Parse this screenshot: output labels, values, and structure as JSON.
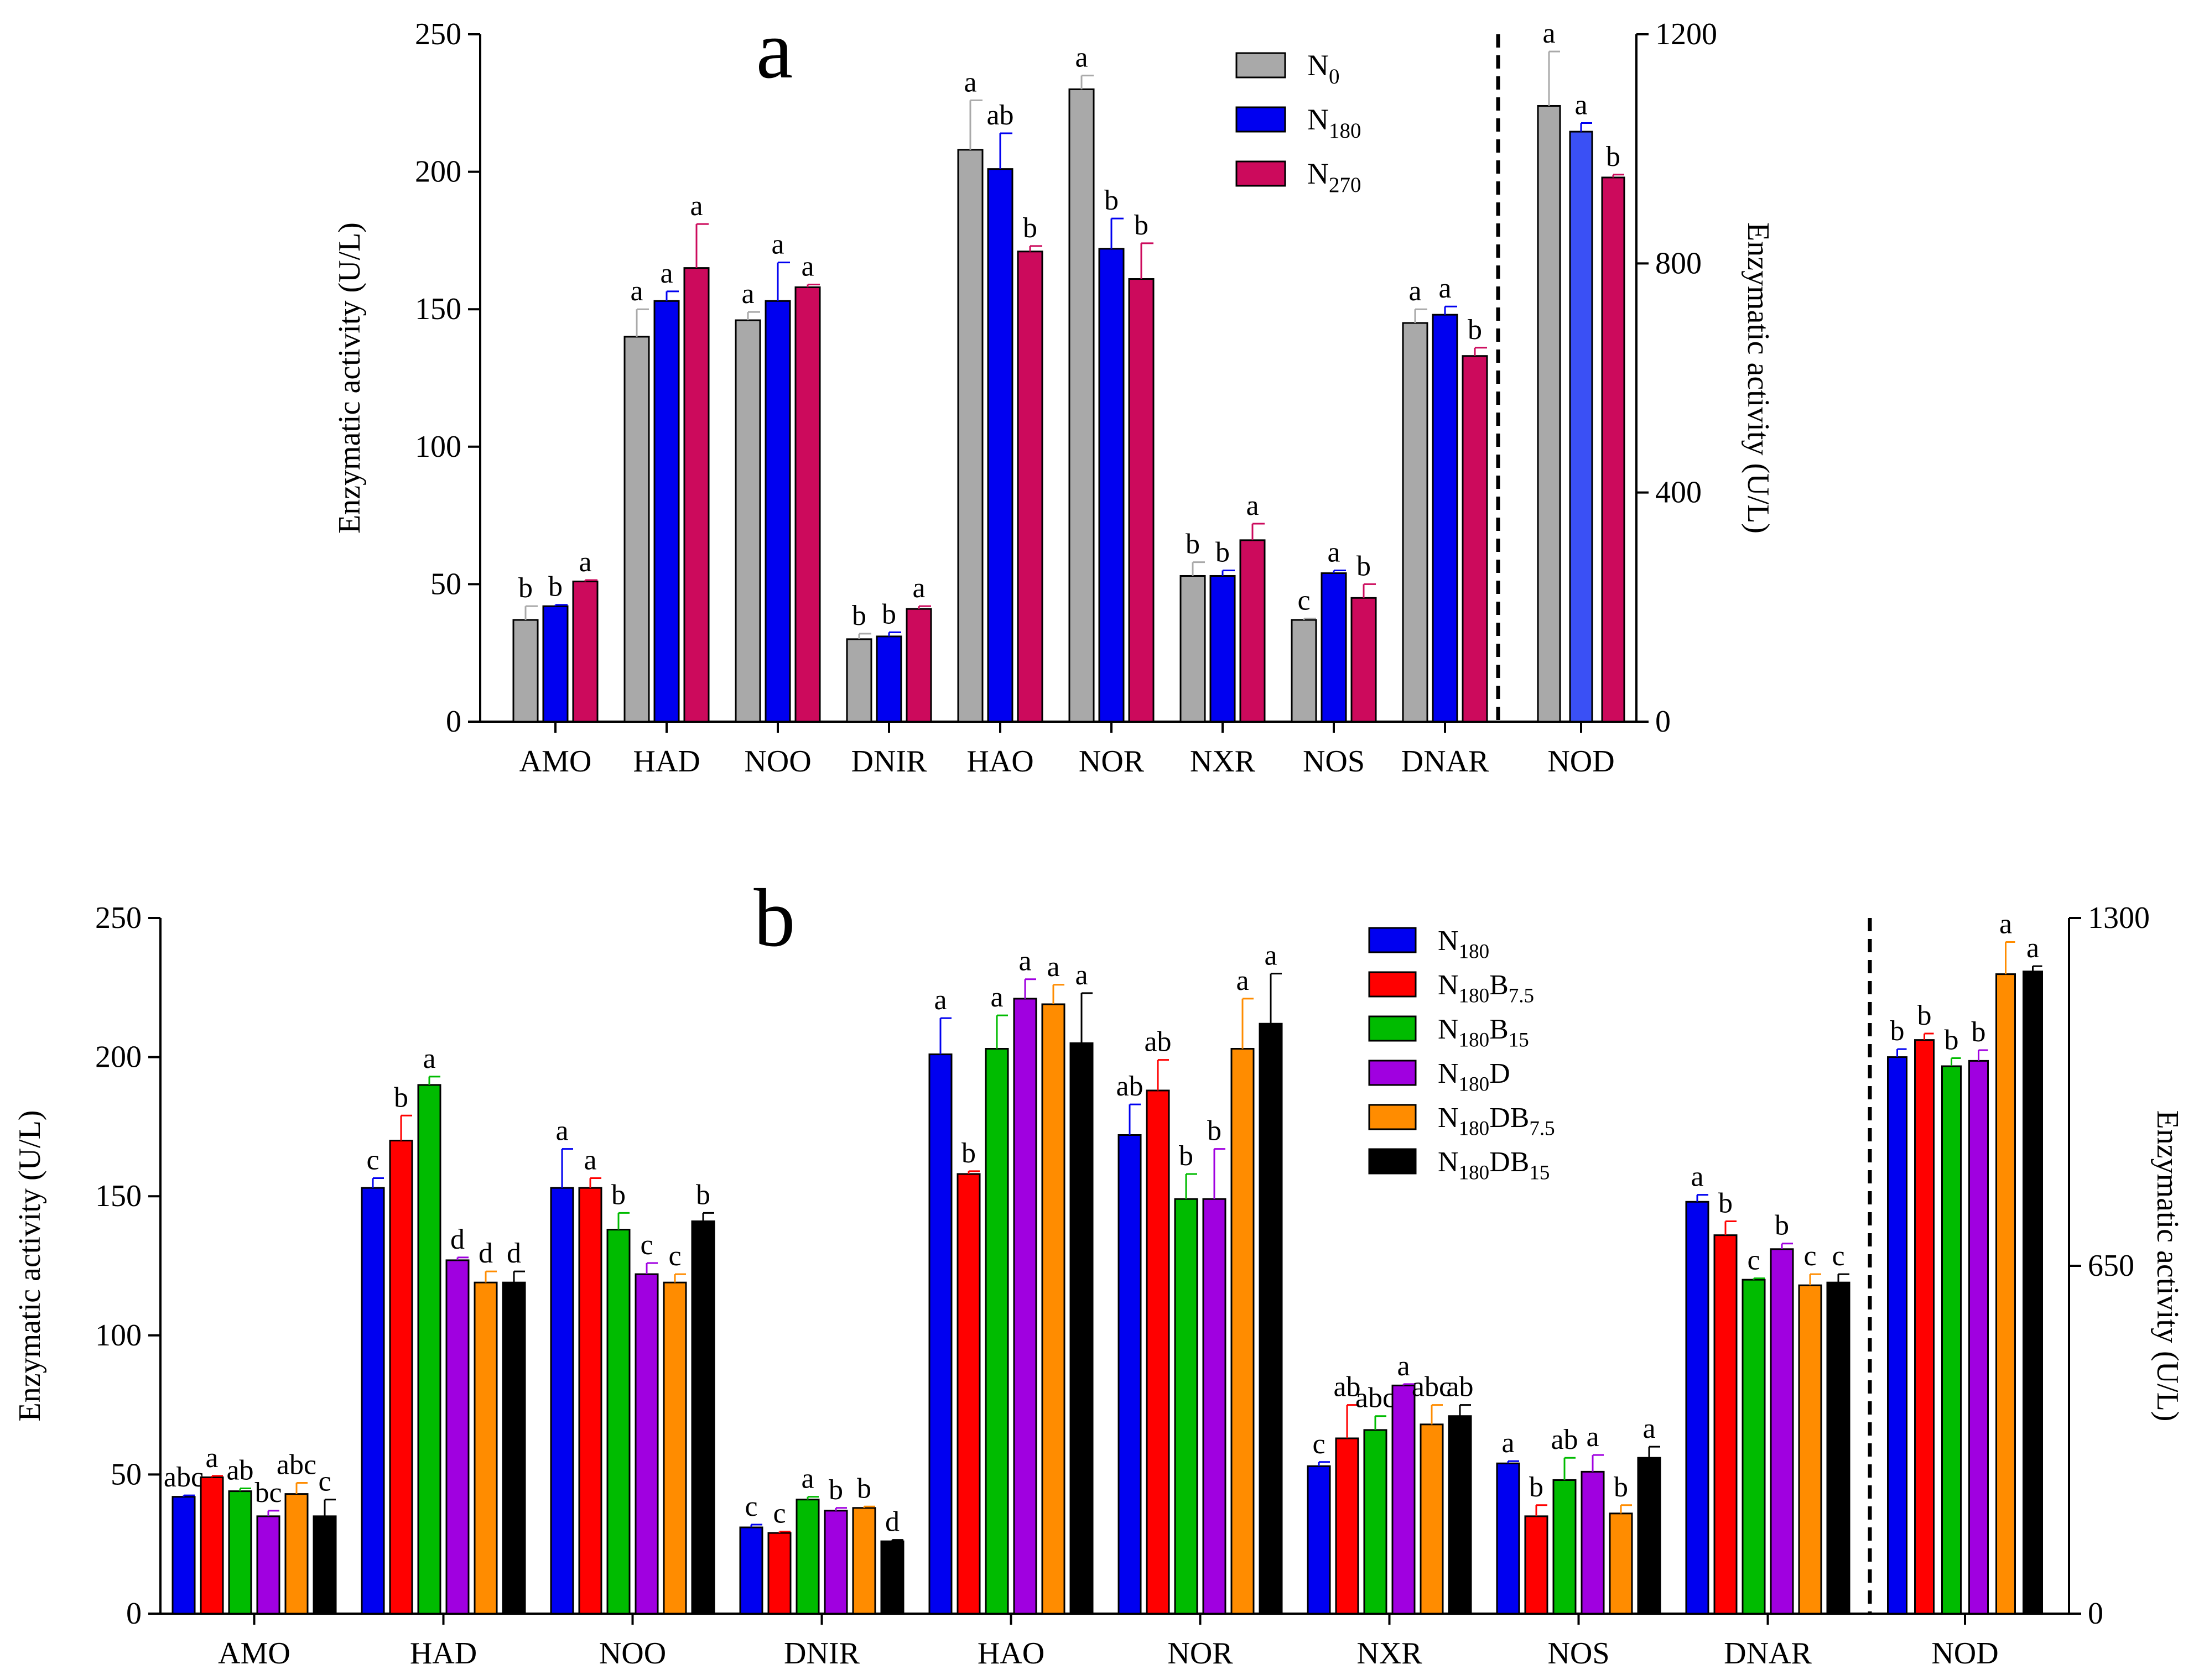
{
  "chart_data": [
    {
      "type": "bar",
      "panel_label": "a",
      "ylabel": "Enzymatic activity (U/L)",
      "ylabel_right": "Enzymatic activity (U/L)",
      "ylim": [
        0,
        250
      ],
      "yticks": [
        "0",
        "50",
        "100",
        "150",
        "200",
        "250"
      ],
      "ylim_right": [
        0,
        1200
      ],
      "yticks_right": [
        "0",
        "400",
        "800",
        "1200"
      ],
      "categories": [
        "AMO",
        "HAD",
        "NOO",
        "DNIR",
        "HAO",
        "NOR",
        "NXR",
        "NOS",
        "DNAR"
      ],
      "right_categories": [
        "NOD"
      ],
      "legend": {
        "position": "top-center",
        "entries": [
          {
            "base": "N",
            "sub": "0"
          },
          {
            "base": "N",
            "sub": "180"
          },
          {
            "base": "N",
            "sub": "270"
          }
        ]
      },
      "series": [
        {
          "base": "N",
          "sub": "0",
          "color": "#a9a9a9",
          "values": [
            37,
            140,
            146,
            30,
            208,
            230,
            53,
            37,
            145
          ],
          "errors": [
            5,
            10,
            3,
            2,
            18,
            5,
            5,
            0.5,
            5
          ],
          "letters": [
            "b",
            "a",
            "a",
            "b",
            "a",
            "a",
            "b",
            "c",
            "a"
          ],
          "right_values": [
            1075
          ],
          "right_errors": [
            95
          ],
          "right_letters": [
            "a"
          ]
        },
        {
          "base": "N",
          "sub": "180",
          "color": "#0000f0",
          "values": [
            42,
            153,
            153,
            31,
            201,
            172,
            53,
            54,
            148
          ],
          "errors": [
            0.5,
            3.5,
            14,
            1.5,
            13,
            11,
            2,
            1,
            3
          ],
          "letters": [
            "b",
            "a",
            "a",
            "b",
            "ab",
            "b",
            "b",
            "a",
            "a"
          ],
          "right_values": [
            1030
          ],
          "right_errors": [
            15
          ],
          "right_letters": [
            "a"
          ]
        },
        {
          "base": "N",
          "sub": "270",
          "color": "#cc0a5c",
          "values": [
            51,
            165,
            158,
            41,
            171,
            161,
            66,
            45,
            133
          ],
          "errors": [
            0.5,
            16,
            1,
            1,
            2,
            13,
            6,
            5,
            3
          ],
          "letters": [
            "a",
            "a",
            "a",
            "a",
            "b",
            "b",
            "a",
            "b",
            "b"
          ],
          "right_values": [
            950
          ],
          "right_errors": [
            5
          ],
          "right_letters": [
            "b"
          ]
        }
      ]
    },
    {
      "type": "bar",
      "panel_label": "b",
      "ylabel": "Enzymatic activity (U/L)",
      "ylabel_right": "Enzymatic activity (U/L)",
      "ylim": [
        0,
        250
      ],
      "yticks": [
        "0",
        "50",
        "100",
        "150",
        "200",
        "250"
      ],
      "ylim_right": [
        0,
        1300
      ],
      "yticks_right": [
        "0",
        "650",
        "1300"
      ],
      "categories": [
        "AMO",
        "HAD",
        "NOO",
        "DNIR",
        "HAO",
        "NOR",
        "NXR",
        "NOS",
        "DNAR"
      ],
      "right_categories": [
        "NOD"
      ],
      "legend": {
        "position": "top-right",
        "entries": [
          {
            "base": "N",
            "sub": "180"
          },
          {
            "base": "N",
            "sub": "180",
            "base2": "B",
            "sub2": "7.5"
          },
          {
            "base": "N",
            "sub": "180",
            "base2": "B",
            "sub2": "15"
          },
          {
            "base": "N",
            "sub": "180",
            "base2": "D"
          },
          {
            "base": "N",
            "sub": "180",
            "base2": "DB",
            "sub2": "7.5"
          },
          {
            "base": "N",
            "sub": "180",
            "base2": "DB",
            "sub2": "15"
          }
        ]
      },
      "series": [
        {
          "color": "#0000f0",
          "values": [
            42,
            153,
            153,
            31,
            201,
            172,
            53,
            54,
            148
          ],
          "errors": [
            0.5,
            3.5,
            14,
            1,
            13,
            11,
            1.5,
            0.8,
            2.5
          ],
          "letters": [
            "abc",
            "c",
            "a",
            "c",
            "a",
            "ab",
            "c",
            "a",
            "a"
          ],
          "right_values": [
            1040
          ],
          "right_errors": [
            15
          ],
          "right_letters": [
            "b"
          ]
        },
        {
          "color": "#ff0000",
          "values": [
            49,
            170,
            153,
            29,
            158,
            188,
            63,
            35,
            136
          ],
          "errors": [
            0.5,
            9,
            3.5,
            0.5,
            1,
            11,
            12,
            4,
            5
          ],
          "letters": [
            "a",
            "b",
            "a",
            "c",
            "b",
            "ab",
            "ab",
            "b",
            "b"
          ],
          "right_values": [
            1072
          ],
          "right_errors": [
            12
          ],
          "right_letters": [
            "b"
          ]
        },
        {
          "color": "#00bb00",
          "values": [
            44,
            190,
            138,
            41,
            203,
            149,
            66,
            48,
            120
          ],
          "errors": [
            1,
            3,
            6,
            1,
            12,
            9,
            5,
            8,
            0.5
          ],
          "letters": [
            "ab",
            "a",
            "b",
            "a",
            "a",
            "b",
            "abc",
            "ab",
            "c"
          ],
          "right_values": [
            1023
          ],
          "right_errors": [
            15
          ],
          "right_letters": [
            "b"
          ]
        },
        {
          "color": "#a000e0",
          "values": [
            35,
            127,
            122,
            37,
            221,
            149,
            82,
            51,
            131
          ],
          "errors": [
            2,
            1,
            4,
            1,
            7,
            18,
            0.5,
            6,
            2
          ],
          "letters": [
            "bc",
            "d",
            "c",
            "b",
            "a",
            "b",
            "a",
            "a",
            "b"
          ],
          "right_values": [
            1033
          ],
          "right_errors": [
            20
          ],
          "right_letters": [
            "b"
          ]
        },
        {
          "color": "#ff8c00",
          "values": [
            43,
            119,
            119,
            38,
            219,
            203,
            68,
            36,
            118
          ],
          "errors": [
            4,
            4,
            3,
            0.5,
            7,
            18,
            7,
            3,
            4
          ],
          "letters": [
            "abc",
            "d",
            "c",
            "b",
            "a",
            "a",
            "abc",
            "b",
            "c"
          ],
          "right_values": [
            1195
          ],
          "right_errors": [
            60
          ],
          "right_letters": [
            "a"
          ]
        },
        {
          "color": "#000000",
          "values": [
            35,
            119,
            141,
            26,
            205,
            212,
            71,
            56,
            119
          ],
          "errors": [
            6,
            4,
            3,
            0.5,
            18,
            18,
            4,
            4,
            3
          ],
          "letters": [
            "c",
            "d",
            "b",
            "d",
            "a",
            "a",
            "ab",
            "a",
            "c"
          ],
          "right_values": [
            1200
          ],
          "right_errors": [
            10
          ],
          "right_letters": [
            "a"
          ]
        }
      ]
    }
  ]
}
